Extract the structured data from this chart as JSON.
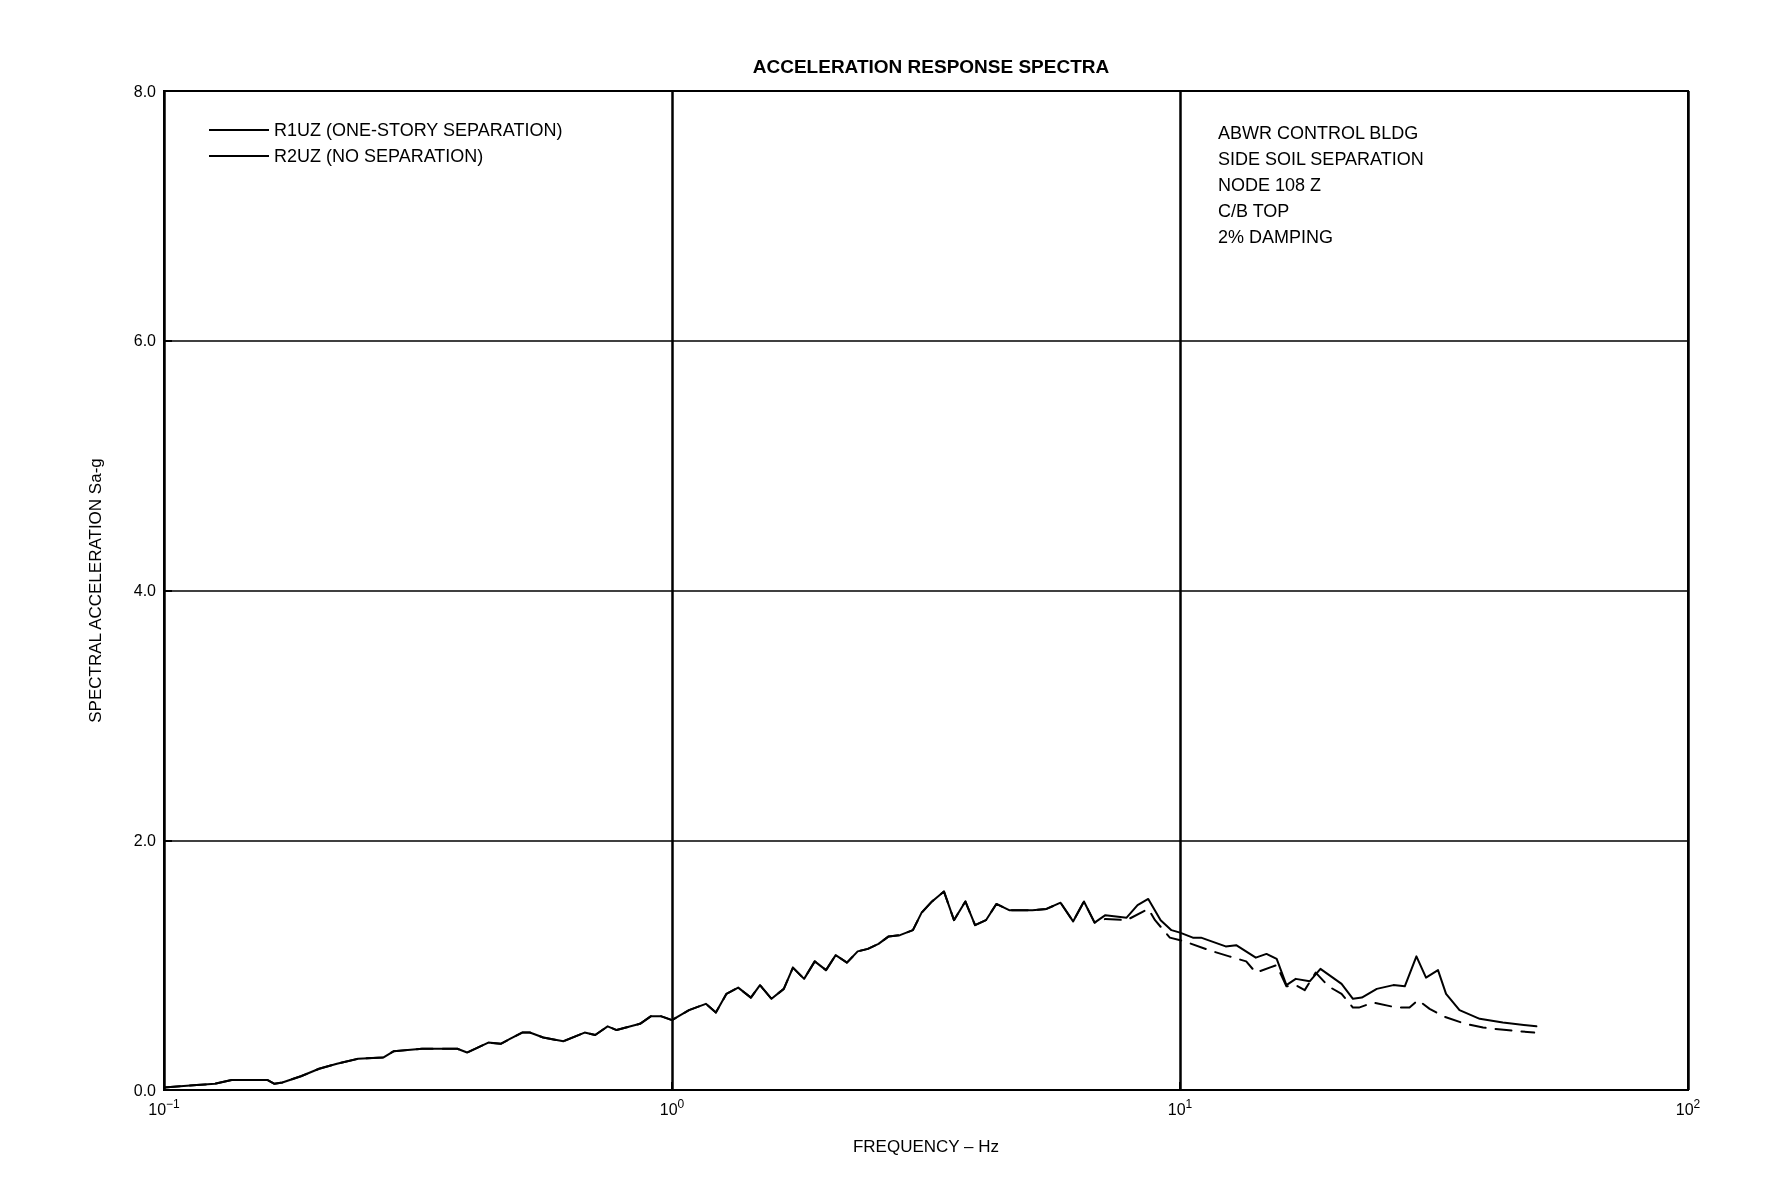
{
  "chart_data": {
    "type": "line",
    "title": "ACCELERATION RESPONSE SPECTRA",
    "xlabel": "FREQUENCY – Hz",
    "ylabel": "SPECTRAL ACCELERATION Sa-g",
    "annotations": [
      "ABWR CONTROL BLDG",
      "SIDE SOIL SEPARATION",
      "NODE 108 Z",
      "C/B TOP",
      "2% DAMPING"
    ],
    "log": "x",
    "grid": true,
    "legend": "top left",
    "marker": "none",
    "xlim": [
      0.1,
      100
    ],
    "xticks": [
      {
        "value": 0.1,
        "label": "10$^{−1}$"
      },
      {
        "value": 1,
        "label": "10$^{0}$"
      },
      {
        "value": 10,
        "label": "10$^{1}$"
      },
      {
        "value": 100,
        "label": "10$^{2}$"
      }
    ],
    "ylim": [
      0,
      8
    ],
    "yticks": [
      {
        "value": 0,
        "label": "0.0"
      },
      {
        "value": 2,
        "label": "2.0"
      },
      {
        "value": 4,
        "label": "4.0"
      },
      {
        "value": 6,
        "label": "6.0"
      },
      {
        "value": 8,
        "label": "8.0"
      }
    ],
    "series": [
      {
        "name": "R1UZ (ONE-STORY SEPARATION)",
        "color": "#000000",
        "line_style": "solid",
        "x": [
          0.1,
          0.116,
          0.126,
          0.136,
          0.16,
          0.165,
          0.171,
          0.186,
          0.202,
          0.219,
          0.241,
          0.27,
          0.283,
          0.322,
          0.378,
          0.395,
          0.435,
          0.46,
          0.507,
          0.525,
          0.558,
          0.611,
          0.673,
          0.706,
          0.747,
          0.778,
          0.865,
          0.908,
          0.953,
          1.0,
          1.08,
          1.166,
          1.22,
          1.28,
          1.35,
          1.43,
          1.49,
          1.57,
          1.66,
          1.73,
          1.82,
          1.91,
          2.01,
          2.1,
          2.21,
          2.32,
          2.43,
          2.55,
          2.67,
          2.81,
          2.98,
          3.1,
          3.25,
          3.43,
          3.59,
          3.78,
          3.95,
          4.15,
          4.35,
          4.61,
          5.12,
          5.46,
          5.82,
          6.16,
          6.47,
          6.79,
          7.13,
          7.85,
          8.25,
          8.66,
          9.16,
          9.62,
          10,
          10.6,
          11.0,
          12.3,
          12.9,
          14.1,
          14.8,
          15.5,
          16.2,
          16.9,
          18.0,
          18.9,
          20.8,
          21.9,
          22.8,
          24.4,
          26.3,
          27.7,
          29.2,
          30.5,
          32.2,
          33.4,
          35.5,
          38.9,
          43.2,
          50.3
        ],
        "values": [
          0.02,
          0.04,
          0.05,
          0.08,
          0.08,
          0.05,
          0.06,
          0.11,
          0.17,
          0.21,
          0.25,
          0.26,
          0.31,
          0.33,
          0.33,
          0.3,
          0.38,
          0.37,
          0.46,
          0.46,
          0.42,
          0.39,
          0.46,
          0.44,
          0.51,
          0.48,
          0.53,
          0.59,
          0.59,
          0.56,
          0.64,
          0.69,
          0.62,
          0.77,
          0.82,
          0.74,
          0.84,
          0.73,
          0.81,
          0.98,
          0.89,
          1.03,
          0.96,
          1.08,
          1.02,
          1.11,
          1.13,
          1.17,
          1.23,
          1.24,
          1.28,
          1.42,
          1.51,
          1.59,
          1.36,
          1.51,
          1.32,
          1.36,
          1.49,
          1.44,
          1.44,
          1.45,
          1.5,
          1.35,
          1.51,
          1.34,
          1.4,
          1.38,
          1.48,
          1.53,
          1.36,
          1.28,
          1.26,
          1.22,
          1.22,
          1.15,
          1.16,
          1.06,
          1.09,
          1.05,
          0.84,
          0.89,
          0.87,
          0.97,
          0.85,
          0.73,
          0.74,
          0.81,
          0.84,
          0.83,
          1.07,
          0.9,
          0.96,
          0.77,
          0.64,
          0.57,
          0.54,
          0.51
        ]
      },
      {
        "name": "R2UZ (NO SEPARATION)",
        "color": "#000000",
        "line_style": "dashed",
        "x": [
          0.1,
          0.116,
          0.126,
          0.136,
          0.16,
          0.165,
          0.171,
          0.186,
          0.202,
          0.219,
          0.241,
          0.27,
          0.283,
          0.322,
          0.378,
          0.395,
          0.435,
          0.46,
          0.507,
          0.525,
          0.558,
          0.611,
          0.673,
          0.706,
          0.747,
          0.778,
          0.865,
          0.908,
          0.953,
          1.0,
          1.08,
          1.166,
          1.22,
          1.28,
          1.35,
          1.43,
          1.49,
          1.57,
          1.66,
          1.73,
          1.82,
          1.91,
          2.01,
          2.1,
          2.21,
          2.32,
          2.43,
          2.55,
          2.67,
          2.81,
          2.98,
          3.1,
          3.25,
          3.43,
          3.59,
          3.78,
          3.95,
          4.15,
          4.35,
          4.61,
          5.12,
          5.46,
          5.82,
          6.16,
          6.47,
          6.79,
          7.13,
          7.85,
          8.66,
          8.93,
          9.55,
          10.2,
          11.4,
          12.5,
          13.5,
          14.1,
          15.5,
          16.2,
          16.9,
          17.6,
          18.5,
          19.6,
          20.8,
          21.9,
          22.5,
          24.0,
          26.7,
          28.3,
          29.4,
          31.0,
          33.0,
          36.4,
          39.5,
          43.9,
          49.8
        ],
        "values": [
          0.02,
          0.04,
          0.05,
          0.08,
          0.08,
          0.05,
          0.06,
          0.11,
          0.17,
          0.21,
          0.25,
          0.26,
          0.31,
          0.33,
          0.33,
          0.3,
          0.38,
          0.37,
          0.46,
          0.46,
          0.42,
          0.39,
          0.46,
          0.44,
          0.51,
          0.48,
          0.53,
          0.59,
          0.59,
          0.56,
          0.64,
          0.69,
          0.62,
          0.77,
          0.82,
          0.74,
          0.84,
          0.73,
          0.81,
          0.98,
          0.89,
          1.03,
          0.96,
          1.08,
          1.02,
          1.11,
          1.13,
          1.17,
          1.23,
          1.24,
          1.28,
          1.42,
          1.51,
          1.59,
          1.36,
          1.51,
          1.32,
          1.36,
          1.49,
          1.44,
          1.44,
          1.45,
          1.5,
          1.35,
          1.51,
          1.34,
          1.37,
          1.36,
          1.45,
          1.36,
          1.22,
          1.19,
          1.12,
          1.07,
          1.03,
          0.94,
          1.0,
          0.83,
          0.84,
          0.8,
          0.94,
          0.83,
          0.77,
          0.66,
          0.66,
          0.7,
          0.66,
          0.66,
          0.72,
          0.65,
          0.59,
          0.53,
          0.5,
          0.48,
          0.46
        ]
      }
    ]
  }
}
